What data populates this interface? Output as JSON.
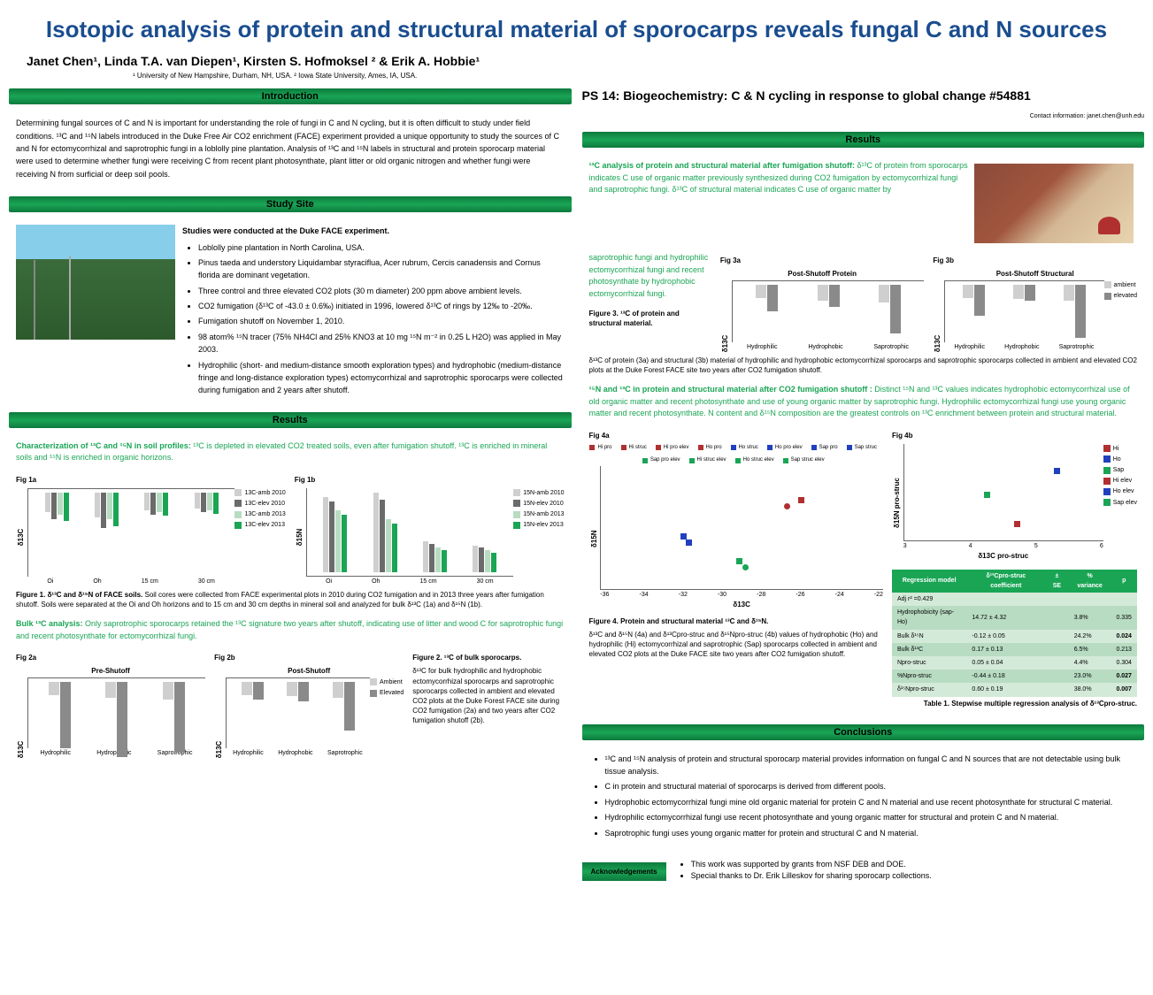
{
  "title": "Isotopic analysis of protein and structural material of sporocarps reveals fungal C and N sources",
  "authors": "Janet Chen¹, Linda T.A. van Diepen¹, Kirsten S. Hofmoksel ² & Erik A. Hobbie¹",
  "affil": "¹ University of New Hampshire, Durham, NH, USA.  ² Iowa State University, Ames, IA, USA.",
  "ps_header": "PS 14: Biogeochemistry: C & N cycling in response to global change #54881",
  "contact": "Contact information: janet.chen@unh.edu",
  "headers": {
    "intro": "Introduction",
    "site": "Study Site",
    "results": "Results",
    "conclusions": "Conclusions",
    "ack": "Acknowledgements"
  },
  "intro": "Determining fungal sources of C and N is important for understanding the role of fungi in C and N cycling, but it is often difficult to study under field conditions. ¹³C and ¹⁵N labels introduced in the Duke Free Air CO2 enrichment (FACE) experiment provided a unique opportunity to study the sources of C and N for ectomycorrhizal and saprotrophic fungi in a loblolly pine plantation. Analysis of ¹³C and ¹⁵N labels in structural and protein sporocarp material were used to determine whether fungi were receiving C from recent plant photosynthate, plant litter or old organic nitrogen and whether fungi were receiving N from surficial or deep soil pools.",
  "site": {
    "heading": "Studies were conducted at the Duke FACE experiment.",
    "bullets": [
      "Loblolly pine plantation in North Carolina, USA.",
      "Pinus taeda and understory Liquidambar styraciflua, Acer rubrum, Cercis canadensis and Cornus florida are dominant vegetation.",
      "Three control and three elevated CO2 plots (30 m diameter) 200 ppm above ambient levels.",
      "CO2 fumigation (δ¹³C of -43.0 ± 0.6‰) initiated in 1996, lowered δ¹³C of rings by 12‰ to -20‰.",
      "Fumigation shutoff on November 1, 2010.",
      "98 atom% ¹⁵N tracer (75% NH4Cl and 25% KNO3 at 10 mg ¹⁵N m⁻² in 0.25 L H2O) was applied in May 2003.",
      "Hydrophilic (short- and medium-distance smooth exploration types) and hydrophobic (medium-distance fringe and long-distance exploration types) ectomycorrhizal and saprotrophic sporocarps were collected during fumigation and 2 years after shutoff."
    ]
  },
  "results_left": {
    "char_head": "Characterization of ¹³C and ¹⁵N in soil profiles:",
    "char_text": " ¹³C is depleted in elevated CO2 treated soils, even after fumigation shutoff. ¹³C is enriched in mineral soils and ¹⁵N is enriched in organic horizons.",
    "fig1a_label": "Fig 1a",
    "fig1b_label": "Fig 1b",
    "fig1_cats": [
      "Oi",
      "Oh",
      "15 cm",
      "30 cm"
    ],
    "fig1a_ylabel": "δ13C",
    "fig1b_ylabel": "δ15N",
    "fig1a_yticks": [
      "-20",
      "-25",
      "-30",
      "-35",
      "-40"
    ],
    "fig1b_yticks": [
      "20",
      "15",
      "10",
      "5"
    ],
    "fig1a_legend": [
      "13C-amb 2010",
      "13C-elev 2010",
      "13C-amb 2013",
      "13C-elev 2013"
    ],
    "fig1b_legend": [
      "15N-amb 2010",
      "15N-elev 2010",
      "15N-amb 2013",
      "15N-elev 2013"
    ],
    "fig1_colors": [
      "#cfcfcf",
      "#6b6b6b",
      "#b8dcc2",
      "#1aa555"
    ],
    "fig1a_data": [
      [
        22,
        30,
        25,
        32
      ],
      [
        28,
        40,
        30,
        38
      ],
      [
        20,
        25,
        22,
        26
      ],
      [
        18,
        22,
        20,
        24
      ]
    ],
    "fig1b_data": [
      [
        85,
        80,
        70,
        65
      ],
      [
        90,
        82,
        60,
        55
      ],
      [
        35,
        32,
        28,
        25
      ],
      [
        30,
        28,
        25,
        22
      ]
    ],
    "fig1_caption_bold": "Figure 1. δ¹³C and δ¹⁵N of FACE soils.",
    "fig1_caption": "Soil cores were collected from FACE experimental plots in 2010 during CO2 fumigation and in 2013 three years after fumigation shutoff. Soils were separated at the Oi and Oh horizons and to 15 cm and 30 cm depths in mineral soil and analyzed for bulk δ¹³C (1a) and δ¹⁵N (1b).",
    "bulk_head": "Bulk ¹³C analysis:",
    "bulk_text": " Only saprotrophic sporocarps retained the ¹³C signature two years after shutoff, indicating use of litter and wood C for saprotrophic fungi and recent photosynthate for ectomycorrhizal fungi.",
    "fig2a_label": "Fig 2a",
    "fig2b_label": "Fig 2b",
    "fig2a_title": "Pre-Shutoff",
    "fig2b_title": "Post-Shutoff",
    "fig2_cats": [
      "Hydrophilic",
      "Hydrophobic",
      "Saprotrophic"
    ],
    "fig2_ylabel": "δ13C",
    "fig2_legend": [
      "Ambient",
      "Elevated"
    ],
    "fig2_colors": [
      "#cfcfcf",
      "#8a8a8a"
    ],
    "fig2a_data": [
      [
        15,
        75
      ],
      [
        18,
        85
      ],
      [
        20,
        80
      ]
    ],
    "fig2b_data": [
      [
        15,
        20
      ],
      [
        16,
        22
      ],
      [
        18,
        55
      ]
    ],
    "fig2_caption_bold": "Figure 2. ¹³C of bulk sporocarps.",
    "fig2_caption": "δ¹³C for bulk hydrophilic and hydrophobic ectomycorrhizal sporocarps and saprotrophic sporocarps collected in ambient and elevated CO2 plots at the Duke Forest FACE site during CO2 fumigation (2a) and two years after CO2 fumigation shutoff (2b)."
  },
  "results_right": {
    "top_head": "¹³C analysis of protein and structural material after fumigation shutoff:",
    "top_text": " δ¹³C of protein from sporocarps indicates C use of organic matter previously synthesized during CO2 fumigation by ectomycorrhizal fungi and saprotrophic fungi. δ¹³C of structural material indicates C use of organic matter by",
    "top_text2": "saprotrophic fungi and hydrophilic ectomycorrhizal fungi and recent photosynthate by hydrophobic ectomycorrhizal fungi.",
    "fig3a_label": "Fig 3a",
    "fig3b_label": "Fig 3b",
    "fig3a_title": "Post-Shutoff Protein",
    "fig3b_title": "Post-Shutoff Structural",
    "fig3_cats": [
      "Hydrophilic",
      "Hydrophobic",
      "Saprotrophic"
    ],
    "fig3_ylabel": "δ13C",
    "fig3_legend": [
      "ambient",
      "elevated"
    ],
    "fig3_colors": [
      "#cfcfcf",
      "#8a8a8a"
    ],
    "fig3a_data": [
      [
        15,
        30
      ],
      [
        18,
        25
      ],
      [
        20,
        55
      ]
    ],
    "fig3b_data": [
      [
        15,
        35
      ],
      [
        16,
        18
      ],
      [
        18,
        60
      ]
    ],
    "fig3_caption_bold": "Figure 3. ¹³C of protein and structural material.",
    "fig3_caption": "δ¹³C of protein (3a) and structural (3b) material of hydrophilic and hydrophobic ectomycorrhizal sporocarps and saprotrophic sporocarps collected in ambient and elevated CO2 plots at the Duke Forest FACE site two years after CO2 fumigation shutoff.",
    "mid_head": "¹⁵N and ¹³C in protein and structural material after CO2 fumigation shutoff :",
    "mid_text": " Distinct ¹⁵N and ¹³C values indicates hydrophobic ectomycorrhizal use of old organic matter and recent photosynthate and use of young organic matter by saprotrophic fungi. Hydrophilic ectomycorrhizal fungi use young organic matter and recent photosynthate. N content and δ¹⁵N composition are the greatest controls on ¹³C enrichment between protein and structural material.",
    "fig4a_label": "Fig 4a",
    "fig4b_label": "Fig 4b",
    "fig4a_xlabel": "δ13C",
    "fig4a_ylabel": "δ15N",
    "fig4b_xlabel": "δ13C pro-struc",
    "fig4b_ylabel": "δ15N pro-struc",
    "fig4a_xticks": [
      "-36",
      "-34",
      "-32",
      "-30",
      "-28",
      "-26",
      "-24",
      "-22"
    ],
    "fig4a_yticks": [
      "30",
      "25",
      "20",
      "15",
      "10"
    ],
    "fig4b_xticks": [
      "3",
      "4",
      "5",
      "6"
    ],
    "fig4b_yticks": [
      "1",
      "0",
      "-1"
    ],
    "fig4_legend_a": [
      "Hi pro",
      "Hi struc",
      "Hi pro elev",
      "Ho pro",
      "Ho struc",
      "Ho pro elev",
      "Sap pro",
      "Sap struc",
      "Sap pro elev",
      "Hi struc elev",
      "Ho struc elev",
      "Sap struc elev"
    ],
    "fig4_legend_b": [
      "Hi",
      "Ho",
      "Sap",
      "Hi elev",
      "Ho elev",
      "Sap elev"
    ],
    "fig4a_points": [
      {
        "x": 70,
        "y": 25,
        "c": "#b03030",
        "s": "sq"
      },
      {
        "x": 65,
        "y": 30,
        "c": "#b03030",
        "s": "ci"
      },
      {
        "x": 30,
        "y": 60,
        "c": "#2040c0",
        "s": "sq"
      },
      {
        "x": 28,
        "y": 55,
        "c": "#2040c0",
        "s": "sq"
      },
      {
        "x": 50,
        "y": 80,
        "c": "#1aa555",
        "s": "ci"
      },
      {
        "x": 48,
        "y": 75,
        "c": "#1aa555",
        "s": "sq"
      }
    ],
    "fig4b_points": [
      {
        "x": 75,
        "y": 25,
        "c": "#2040c0",
        "s": "sq"
      },
      {
        "x": 40,
        "y": 50,
        "c": "#1aa555",
        "s": "sq"
      },
      {
        "x": 55,
        "y": 80,
        "c": "#b03030",
        "s": "sq"
      }
    ],
    "fig4_colors": {
      "Hi": "#b03030",
      "Ho": "#2040c0",
      "Sap": "#1aa555"
    },
    "fig4_caption_bold": "Figure 4. Protein and structural material ¹³C and δ¹⁵N.",
    "fig4_caption": "δ¹³C and δ¹⁵N (4a) and δ¹³Cpro-struc and δ¹⁵Npro-struc (4b) values of hydrophobic (Ho) and hydrophilic (Hi) ectomycorrhizal and saprotrophic (Sap) sporocarps collected in ambient and elevated CO2 plots at the Duke FACE site two years after CO2 fumigation shutoff.",
    "table_header": [
      "Regression model",
      "δ¹³Cpro-struc coefficient",
      "± SE",
      "% variance",
      "p"
    ],
    "table_subhead": "Adj r² =0.429",
    "table_rows": [
      [
        "Hydrophobicity (sap-Ho)",
        "14.72 ± 4.32",
        "3.8%",
        "0.335"
      ],
      [
        "Bulk δ¹⁵N",
        "-0.12 ± 0.05",
        "24.2%",
        "0.024"
      ],
      [
        "Bulk δ¹³C",
        "0.17 ± 0.13",
        "6.5%",
        "0.213"
      ],
      [
        "Npro-struc",
        "0.05 ± 0.04",
        "4.4%",
        "0.304"
      ],
      [
        "%Npro-struc",
        "-0.44 ± 0.18",
        "23.0%",
        "0.027"
      ],
      [
        "δ¹⁵Npro-struc",
        "0.60 ± 0.19",
        "38.0%",
        "0.007"
      ]
    ],
    "table_caption": "Table 1. Stepwise multiple regression analysis of δ¹³Cpro-struc."
  },
  "conclusions": [
    "¹³C and ¹⁵N analysis of protein and structural sporocarp material provides information on fungal C and N sources that are not detectable using bulk tissue analysis.",
    "C in protein and structural material of sporocarps is derived from different pools.",
    "Hydrophobic ectomycorrhizal fungi mine old organic material for protein C and N material and use recent photosynthate for structural C material.",
    "Hydrophilic ectomycorrhizal fungi use recent photosynthate and young organic matter for structural and protein C and N material.",
    "Saprotrophic fungi uses young organic matter for protein and structural C and N material."
  ],
  "ack": [
    "This work was supported by grants from NSF DEB and DOE.",
    "Special thanks to Dr. Erik Lilleskov for sharing sporocarp collections."
  ]
}
